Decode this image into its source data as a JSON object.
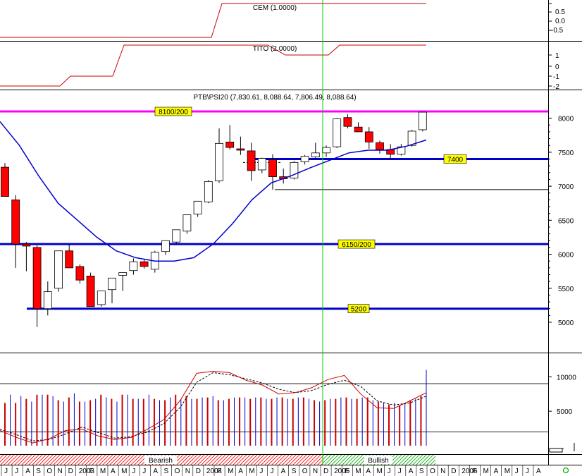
{
  "chart_data": {
    "type": "candlestick",
    "colors": {
      "up": "#ffffff",
      "down": "#ff0000",
      "outline": "#000000",
      "ma": "#0000cc",
      "support": "#0000cc",
      "resistance": "#ff00ff",
      "divider": "#00cc00",
      "indicator": "#cc0000",
      "volume_up": "#0000cc",
      "volume_down": "#cc0000"
    },
    "cem": {
      "label": "CEM (1.0000)",
      "ticks": [
        "0.5",
        "0.0",
        "-0.5"
      ],
      "steps": [
        [
          0,
          -1
        ],
        [
          300,
          -1
        ],
        [
          315,
          1
        ],
        [
          605,
          1
        ]
      ]
    },
    "tito": {
      "label": "TITO (2.0000)",
      "ticks": [
        "1",
        "0",
        "-1",
        "-2"
      ],
      "steps": [
        [
          0,
          -2
        ],
        [
          85,
          -2
        ],
        [
          100,
          -1
        ],
        [
          160,
          -1
        ],
        [
          176,
          2
        ],
        [
          380,
          2
        ],
        [
          405,
          1
        ],
        [
          466,
          1
        ],
        [
          482,
          2
        ],
        [
          605,
          2
        ]
      ]
    },
    "price": {
      "title": "PTB\\PSI20 (7,830.61, 8,088.64, 7,806.49, 8,088.64)",
      "ylim": [
        4800,
        8200
      ],
      "yticks": [
        "8000",
        "7500",
        "7000",
        "6500",
        "6000",
        "5500",
        "5000"
      ],
      "yvals": [
        8000,
        7500,
        7000,
        6500,
        6000,
        5500,
        5000
      ],
      "candles": [
        [
          7280,
          7340,
          6850,
          6850
        ],
        [
          6800,
          6870,
          5800,
          6150
        ],
        [
          6150,
          6180,
          5750,
          6120
        ],
        [
          6100,
          6130,
          4930,
          5200
        ],
        [
          5200,
          5600,
          5100,
          5450
        ],
        [
          5500,
          6050,
          5450,
          6050
        ],
        [
          6050,
          6150,
          5800,
          5800
        ],
        [
          5820,
          5850,
          5570,
          5620
        ],
        [
          5680,
          5730,
          5230,
          5230
        ],
        [
          5260,
          5460,
          5230,
          5460
        ],
        [
          5480,
          5650,
          5280,
          5650
        ],
        [
          5690,
          5730,
          5460,
          5730
        ],
        [
          5760,
          5940,
          5700,
          5890
        ],
        [
          5890,
          5920,
          5790,
          5820
        ],
        [
          5780,
          6050,
          5730,
          6030
        ],
        [
          6040,
          6200,
          5990,
          6200
        ],
        [
          6180,
          6360,
          6150,
          6360
        ],
        [
          6340,
          6580,
          6300,
          6580
        ],
        [
          6590,
          6780,
          6550,
          6780
        ],
        [
          6770,
          7090,
          6750,
          7070
        ],
        [
          7080,
          7850,
          7050,
          7630
        ],
        [
          7650,
          7900,
          7540,
          7570
        ],
        [
          7550,
          7730,
          7460,
          7530
        ],
        [
          7520,
          7640,
          7080,
          7230
        ],
        [
          7240,
          7420,
          7190,
          7410
        ],
        [
          7390,
          7470,
          6950,
          7140
        ],
        [
          7140,
          7260,
          7040,
          7110
        ],
        [
          7120,
          7370,
          7100,
          7350
        ],
        [
          7360,
          7460,
          7320,
          7440
        ],
        [
          7430,
          7640,
          7400,
          7490
        ],
        [
          7490,
          7600,
          7430,
          7570
        ],
        [
          7580,
          8000,
          7560,
          7990
        ],
        [
          8010,
          8060,
          7850,
          7880
        ],
        [
          7870,
          7940,
          7800,
          7800
        ],
        [
          7800,
          7870,
          7550,
          7650
        ],
        [
          7640,
          7670,
          7480,
          7540
        ],
        [
          7540,
          7620,
          7400,
          7470
        ],
        [
          7470,
          7620,
          7450,
          7580
        ],
        [
          7600,
          7830,
          7580,
          7810
        ],
        [
          7831,
          8089,
          7806,
          8089
        ]
      ],
      "ma": [
        7950,
        7600,
        7150,
        6750,
        6500,
        6250,
        6050,
        5950,
        5900,
        5900,
        5950,
        6150,
        6450,
        6800,
        7050,
        7150,
        7270,
        7380,
        7490,
        7530,
        7530,
        7590,
        7680
      ],
      "resistance": {
        "value": 8100,
        "label": "8100/200"
      },
      "levels": [
        {
          "value": 7400,
          "label": "7400"
        },
        {
          "value": 6150,
          "label": "6150/200"
        },
        {
          "value": 5200,
          "label": "5200"
        }
      ],
      "ref_line": 6950
    },
    "volume": {
      "yticks": [
        "10000",
        "5000"
      ],
      "yvals": [
        10000,
        5000
      ],
      "ylim": [
        0,
        13000
      ],
      "hlines": [
        9000,
        2000
      ],
      "bars": [
        [
          "d",
          6200
        ],
        [
          "u",
          7400
        ],
        [
          "d",
          6200
        ],
        [
          "u",
          7200
        ],
        [
          "d",
          6800
        ],
        [
          "u",
          6400
        ],
        [
          "d",
          7400
        ],
        [
          "u",
          7400
        ],
        [
          "d",
          7400
        ],
        [
          "u",
          7200
        ],
        [
          "d",
          6600
        ],
        [
          "u",
          6400
        ],
        [
          "d",
          7000
        ],
        [
          "u",
          7600
        ],
        [
          "d",
          6400
        ],
        [
          "u",
          6400
        ],
        [
          "d",
          6600
        ],
        [
          "u",
          6800
        ],
        [
          "d",
          7400
        ],
        [
          "u",
          7000
        ],
        [
          "d",
          6800
        ],
        [
          "u",
          6400
        ],
        [
          "d",
          7400
        ],
        [
          "u",
          7400
        ],
        [
          "d",
          6800
        ],
        [
          "u",
          6800
        ],
        [
          "d",
          6800
        ],
        [
          "u",
          7400
        ],
        [
          "d",
          6800
        ],
        [
          "u",
          6600
        ],
        [
          "d",
          6600
        ],
        [
          "u",
          7000
        ],
        [
          "d",
          7400
        ],
        [
          "u",
          6800
        ],
        [
          "d",
          7200
        ],
        [
          "u",
          6800
        ],
        [
          "d",
          6800
        ],
        [
          "u",
          7000
        ],
        [
          "d",
          7000
        ],
        [
          "u",
          7200
        ],
        [
          "d",
          6600
        ],
        [
          "u",
          6600
        ],
        [
          "d",
          6800
        ],
        [
          "u",
          7000
        ],
        [
          "d",
          7000
        ],
        [
          "u",
          7000
        ],
        [
          "d",
          6800
        ],
        [
          "u",
          7000
        ],
        [
          "d",
          7000
        ],
        [
          "u",
          6800
        ],
        [
          "d",
          6800
        ],
        [
          "u",
          7000
        ],
        [
          "d",
          7000
        ],
        [
          "u",
          6800
        ],
        [
          "d",
          6800
        ],
        [
          "u",
          7000
        ],
        [
          "d",
          7000
        ],
        [
          "u",
          6800
        ],
        [
          "d",
          6600
        ],
        [
          "u",
          6400
        ],
        [
          "d",
          6600
        ],
        [
          "u",
          6800
        ],
        [
          "d",
          6800
        ],
        [
          "u",
          7000
        ],
        [
          "d",
          7000
        ],
        [
          "u",
          6800
        ],
        [
          "d",
          6800
        ],
        [
          "u",
          7000
        ],
        [
          "d",
          7000
        ],
        [
          "u",
          6600
        ],
        [
          "d",
          6400
        ],
        [
          "u",
          6200
        ],
        [
          "d",
          6000
        ],
        [
          "u",
          6200
        ],
        [
          "d",
          5800
        ],
        [
          "u",
          6200
        ],
        [
          "d",
          6600
        ],
        [
          "u",
          6800
        ],
        [
          "d",
          7200
        ],
        [
          "u",
          11000
        ]
      ],
      "line_red": [
        2200,
        1200,
        400,
        1000,
        2200,
        2400,
        1400,
        900,
        1200,
        2400,
        3800,
        6600,
        10500,
        10800,
        10600,
        9500,
        8800,
        7500,
        7700,
        8400,
        9600,
        10200,
        7500,
        5500,
        5400,
        6500,
        7700
      ],
      "line_black": [
        2400,
        1600,
        700,
        900,
        1700,
        2700,
        1900,
        1100,
        1300,
        2000,
        3200,
        5600,
        9200,
        10600,
        10300,
        9700,
        9100,
        8200,
        7700,
        8000,
        8900,
        9500,
        8600,
        6500,
        5900,
        6200,
        7200
      ]
    },
    "regimes": [
      {
        "label": "Bearish",
        "color": "#ff0000"
      },
      {
        "label": "Bullish",
        "color": "#00aa00"
      }
    ],
    "xaxis": {
      "ticks": [
        "J",
        "J",
        "A",
        "S",
        "O",
        "N",
        "D",
        "2003",
        "F",
        "M",
        "A",
        "M",
        "J",
        "J",
        "A",
        "S",
        "O",
        "N",
        "D",
        "2004",
        "F",
        "M",
        "A",
        "M",
        "J",
        "J",
        "A",
        "S",
        "O",
        "N",
        "D",
        "2005",
        "F",
        "M",
        "A",
        "M",
        "J",
        "J",
        "A",
        "S",
        "O",
        "N",
        "D",
        "2006",
        "F",
        "M",
        "A",
        "M",
        "J",
        "J",
        "A"
      ]
    }
  }
}
